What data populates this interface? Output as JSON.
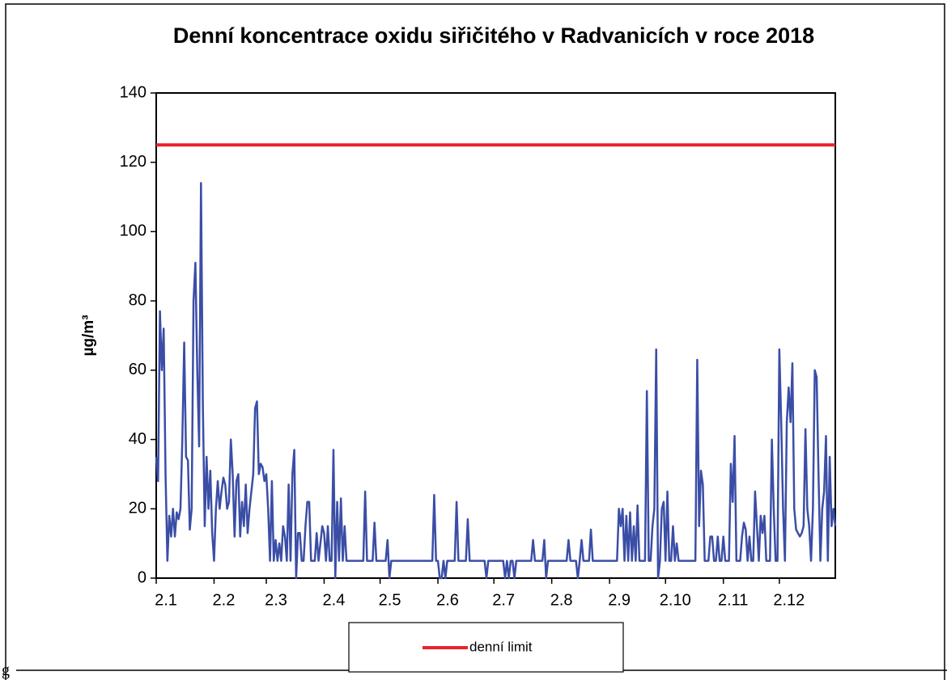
{
  "page_fragment": "g",
  "chart_data": {
    "type": "line",
    "title": "Denní koncentrace oxidu siřičitého v Radvanicích v roce 2018",
    "y_label": "µg/m³",
    "xlim": [
      0,
      364
    ],
    "xticks": [
      {
        "value": 0,
        "label": "2.1"
      },
      {
        "value": 31,
        "label": "2.2"
      },
      {
        "value": 59,
        "label": "2.3"
      },
      {
        "value": 90,
        "label": "2.4"
      },
      {
        "value": 120,
        "label": "2.5"
      },
      {
        "value": 151,
        "label": "2.6"
      },
      {
        "value": 181,
        "label": "2.7"
      },
      {
        "value": 212,
        "label": "2.8"
      },
      {
        "value": 243,
        "label": "2.9"
      },
      {
        "value": 273,
        "label": "2.10"
      },
      {
        "value": 304,
        "label": "2.11"
      },
      {
        "value": 334,
        "label": "2.12"
      }
    ],
    "ylim": [
      0,
      140
    ],
    "yticks": [
      0,
      20,
      40,
      60,
      80,
      100,
      120,
      140
    ],
    "hlines": [
      {
        "name": "denní limit",
        "color": "#e8242a",
        "value": 125
      }
    ],
    "series": [
      {
        "color": "#3b4ea6",
        "values": [
          35,
          28,
          77,
          60,
          72,
          30,
          5,
          18,
          12,
          20,
          12,
          19,
          17,
          20,
          40,
          68,
          35,
          34,
          14,
          20,
          80,
          91,
          60,
          38,
          114,
          50,
          15,
          35,
          20,
          31,
          13,
          5,
          20,
          28,
          20,
          25,
          29,
          27,
          20,
          22,
          40,
          30,
          12,
          28,
          30,
          12,
          22,
          15,
          27,
          13,
          20,
          25,
          30,
          49,
          51,
          30,
          33,
          32,
          28,
          30,
          20,
          5,
          28,
          5,
          11,
          5,
          10,
          5,
          15,
          12,
          5,
          27,
          5,
          30,
          37,
          0,
          13,
          13,
          5,
          5,
          15,
          22,
          22,
          5,
          5,
          5,
          13,
          5,
          10,
          15,
          13,
          5,
          15,
          5,
          5,
          37,
          0,
          22,
          5,
          23,
          5,
          15,
          5,
          5,
          5,
          5,
          5,
          5,
          5,
          5,
          5,
          5,
          25,
          5,
          5,
          5,
          5,
          16,
          5,
          5,
          5,
          5,
          5,
          5,
          11,
          0,
          5,
          5,
          5,
          5,
          5,
          5,
          5,
          5,
          5,
          5,
          5,
          5,
          5,
          5,
          5,
          5,
          5,
          5,
          5,
          5,
          5,
          5,
          5,
          24,
          5,
          5,
          0,
          0,
          5,
          0,
          5,
          5,
          5,
          5,
          5,
          22,
          5,
          5,
          5,
          5,
          5,
          17,
          5,
          5,
          5,
          5,
          5,
          5,
          5,
          5,
          5,
          0,
          5,
          5,
          5,
          5,
          5,
          5,
          5,
          5,
          5,
          0,
          5,
          0,
          5,
          5,
          0,
          5,
          5,
          5,
          5,
          5,
          5,
          5,
          5,
          5,
          11,
          5,
          5,
          5,
          5,
          5,
          11,
          0,
          5,
          5,
          5,
          5,
          5,
          5,
          5,
          5,
          5,
          5,
          5,
          11,
          5,
          5,
          5,
          5,
          0,
          5,
          11,
          5,
          5,
          5,
          5,
          14,
          5,
          5,
          5,
          5,
          5,
          5,
          5,
          5,
          5,
          5,
          5,
          5,
          5,
          5,
          20,
          15,
          20,
          5,
          18,
          5,
          19,
          5,
          15,
          5,
          21,
          5,
          5,
          5,
          5,
          54,
          5,
          5,
          15,
          20,
          66,
          0,
          5,
          20,
          22,
          5,
          25,
          5,
          5,
          15,
          5,
          10,
          5,
          5,
          5,
          5,
          5,
          5,
          5,
          5,
          5,
          5,
          63,
          15,
          31,
          27,
          5,
          5,
          5,
          12,
          12,
          5,
          5,
          12,
          5,
          5,
          12,
          5,
          5,
          5,
          33,
          22,
          41,
          5,
          5,
          5,
          12,
          16,
          14,
          5,
          12,
          5,
          5,
          25,
          15,
          5,
          18,
          13,
          18,
          5,
          5,
          5,
          40,
          20,
          5,
          5,
          66,
          45,
          20,
          5,
          45,
          55,
          45,
          62,
          20,
          14,
          13,
          12,
          13,
          15,
          43,
          20,
          15,
          5,
          20,
          60,
          58,
          30,
          5,
          20,
          25,
          41,
          5,
          35,
          15,
          20,
          15
        ]
      }
    ]
  }
}
